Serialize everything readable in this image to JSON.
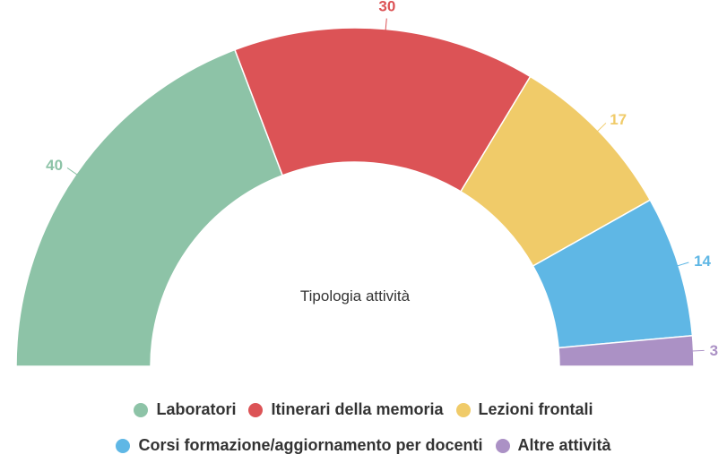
{
  "chart_data": {
    "type": "pie",
    "variant": "semicircle-donut",
    "center_label": "Tipologia attività",
    "categories": [
      "Laboratori",
      "Itinerari della memoria",
      "Lezioni frontali",
      "Corsi formazione/aggiornamento per docenti",
      "Altre attività"
    ],
    "values": [
      40,
      30,
      17,
      14,
      3
    ],
    "colors": [
      "#8dc3a7",
      "#dc5356",
      "#f0cb69",
      "#5fb7e5",
      "#ab91c5"
    ],
    "data_labels": [
      "40",
      "30",
      "17",
      "14",
      "3"
    ],
    "legend_position": "bottom"
  }
}
